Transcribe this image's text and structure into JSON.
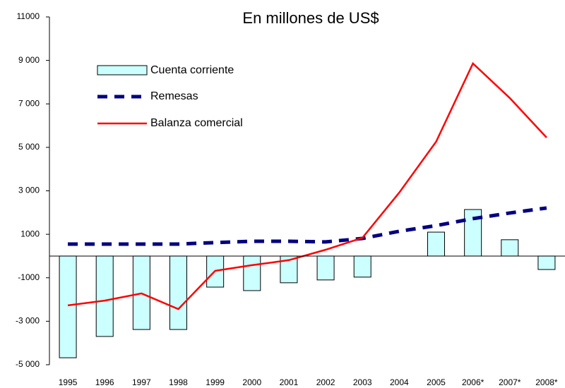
{
  "chart_data": {
    "type": "bar_line",
    "title": "En millones de US$",
    "categories": [
      "1995",
      "1996",
      "1997",
      "1998",
      "1999",
      "2000",
      "2001",
      "2002",
      "2003",
      "2004",
      "2005",
      "2006*",
      "2007*",
      "2008*"
    ],
    "series": [
      {
        "name": "Cuenta corriente",
        "type": "bar",
        "color": "#ccffff",
        "values": [
          -4680,
          -3700,
          -3380,
          -3380,
          -1430,
          -1590,
          -1230,
          -1100,
          -970,
          null,
          1100,
          2140,
          750,
          -620
        ]
      },
      {
        "name": "Remesas",
        "type": "dashed-line",
        "color": "#000080",
        "values": [
          550,
          550,
          550,
          550,
          620,
          680,
          680,
          650,
          810,
          1140,
          1400,
          1720,
          1980,
          2210
        ]
      },
      {
        "name": "Balanza comercial",
        "type": "line",
        "color": "#ff0000",
        "values": [
          -2270,
          -2050,
          -1720,
          -2440,
          -680,
          -420,
          -190,
          290,
          840,
          2920,
          5260,
          8860,
          7270,
          5450
        ]
      }
    ],
    "ylim": [
      -5000,
      11000
    ],
    "yticks": [
      {
        "value": -5000,
        "label": "-5 000"
      },
      {
        "value": -3000,
        "label": "-3 000"
      },
      -1000,
      1000,
      {
        "value": 3000,
        "label": "3 000"
      },
      {
        "value": 5000,
        "label": "5 000"
      },
      {
        "value": 7000,
        "label": "7 000"
      },
      {
        "value": 9000,
        "label": "9 000"
      },
      11000
    ]
  }
}
